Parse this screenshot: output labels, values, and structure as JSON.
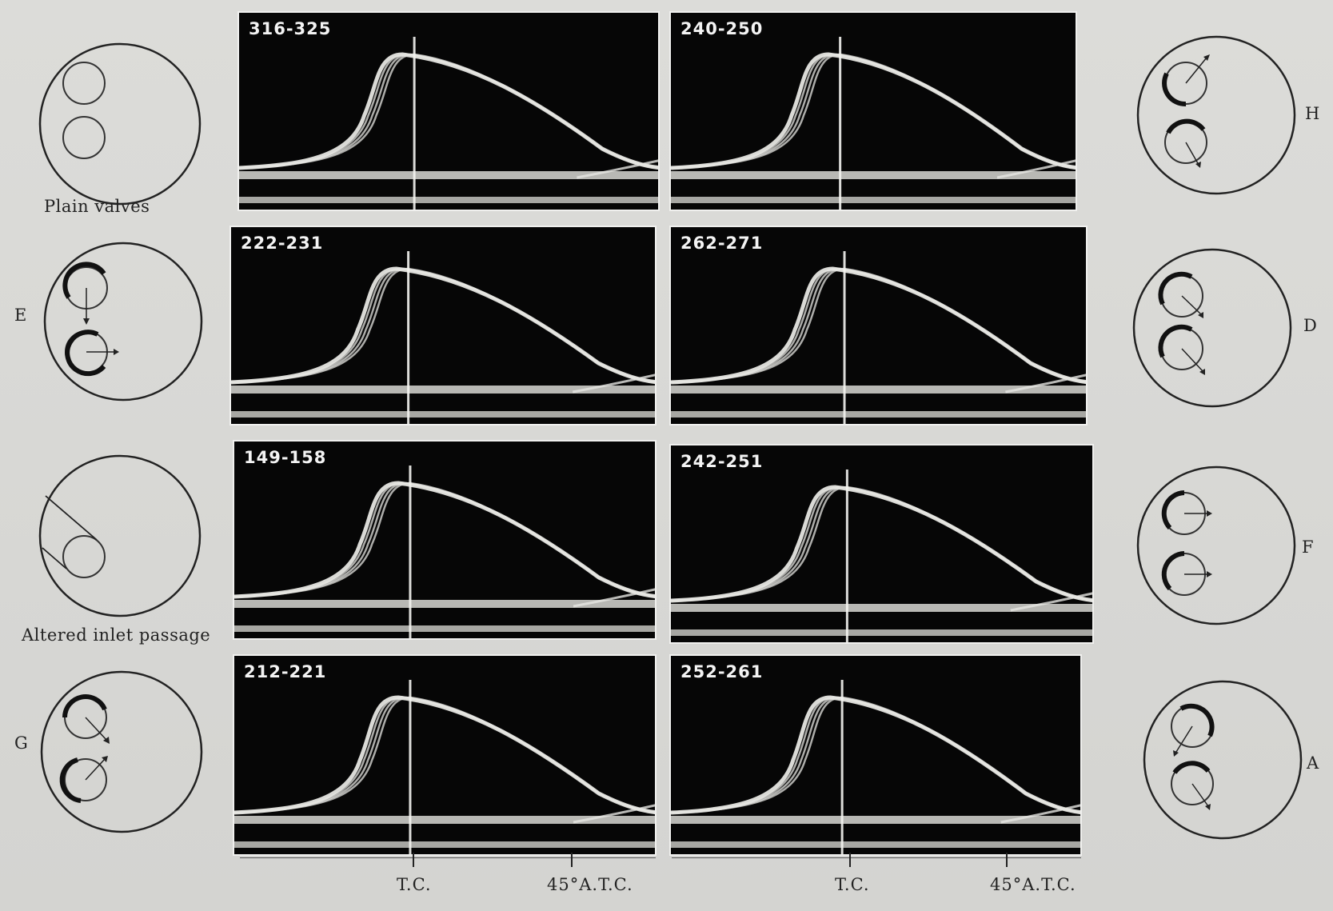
{
  "panels": [
    {
      "label": "316-325"
    },
    {
      "label": "240-250"
    },
    {
      "label": "222-231"
    },
    {
      "label": "262-271"
    },
    {
      "label": "149-158"
    },
    {
      "label": "242-251"
    },
    {
      "label": "212-221"
    },
    {
      "label": "252-261"
    }
  ],
  "left_configs": [
    {
      "letter": "",
      "caption": "Plain valves"
    },
    {
      "letter": "E",
      "caption": ""
    },
    {
      "letter": "",
      "caption": "Altered inlet passage"
    },
    {
      "letter": "G",
      "caption": ""
    }
  ],
  "right_configs": [
    {
      "letter": "H"
    },
    {
      "letter": "D"
    },
    {
      "letter": "F"
    },
    {
      "letter": "A"
    }
  ],
  "axis": {
    "left_tc": "T.C.",
    "left_atc": "45°A.T.C.",
    "right_tc": "T.C.",
    "right_atc": "45°A.T.C."
  },
  "colors": {
    "trace": "#e6e6e2",
    "panel_bg": "#060606",
    "page_bg": "#d9d9d6"
  }
}
